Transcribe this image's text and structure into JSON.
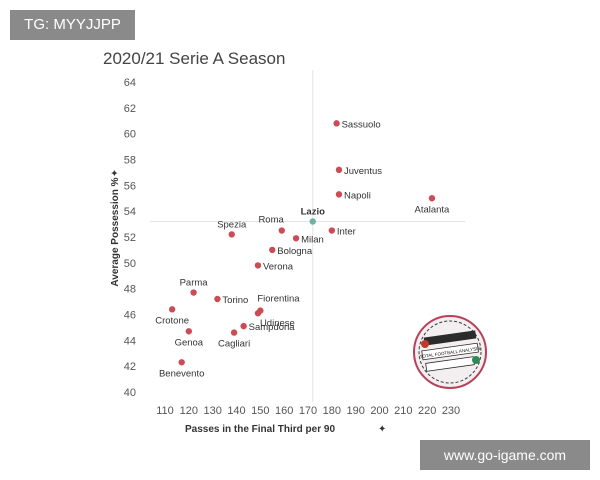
{
  "badge": {
    "text": "TG: MYYJJPP"
  },
  "watermark": {
    "text": "www.go-igame.com"
  },
  "logo": {
    "text": "TOTAL FOOTBALL ANALYSIS"
  },
  "chart_data": {
    "type": "scatter",
    "title": "2020/21 Serie A Season",
    "xlabel": "Passes in the Final Third per 90",
    "ylabel": "Average Possession %",
    "xlim": [
      105,
      235
    ],
    "ylim": [
      39,
      65
    ],
    "xticks": [
      110,
      120,
      130,
      140,
      150,
      160,
      170,
      180,
      190,
      200,
      210,
      220,
      230
    ],
    "yticks": [
      40,
      42,
      44,
      46,
      48,
      50,
      52,
      54,
      56,
      58,
      60,
      62,
      64
    ],
    "reference_lines": {
      "x": 172,
      "y": 53.2
    },
    "grid": false,
    "colors": {
      "default": "#cd4b55",
      "highlight": "#6db3a0",
      "reference": "#e3e3e3"
    },
    "points": [
      {
        "team": "Sassuolo",
        "x": 182,
        "y": 60.8,
        "highlight": false,
        "label_pos": "right"
      },
      {
        "team": "Juventus",
        "x": 183,
        "y": 57.2,
        "highlight": false,
        "label_pos": "right"
      },
      {
        "team": "Napoli",
        "x": 183,
        "y": 55.3,
        "highlight": false,
        "label_pos": "right"
      },
      {
        "team": "Atalanta",
        "x": 222,
        "y": 55.0,
        "highlight": false,
        "label_pos": "below"
      },
      {
        "team": "Lazio",
        "x": 172,
        "y": 53.2,
        "highlight": true,
        "label_pos": "above"
      },
      {
        "team": "Inter",
        "x": 180,
        "y": 52.5,
        "highlight": false,
        "label_pos": "right"
      },
      {
        "team": "Roma",
        "x": 159,
        "y": 52.5,
        "highlight": false,
        "label_pos": "above-left"
      },
      {
        "team": "Milan",
        "x": 165,
        "y": 51.9,
        "highlight": false,
        "label_pos": "right"
      },
      {
        "team": "Spezia",
        "x": 138,
        "y": 52.2,
        "highlight": false,
        "label_pos": "above"
      },
      {
        "team": "Bologna",
        "x": 155,
        "y": 51.0,
        "highlight": false,
        "label_pos": "right"
      },
      {
        "team": "Verona",
        "x": 149,
        "y": 49.8,
        "highlight": false,
        "label_pos": "right"
      },
      {
        "team": "Parma",
        "x": 122,
        "y": 47.7,
        "highlight": false,
        "label_pos": "above"
      },
      {
        "team": "Torino",
        "x": 132,
        "y": 47.2,
        "highlight": false,
        "label_pos": "right"
      },
      {
        "team": "Fiorentina",
        "x": 150,
        "y": 46.3,
        "highlight": false,
        "label_pos": "above-right"
      },
      {
        "team": "Udinese",
        "x": 149,
        "y": 46.1,
        "highlight": false,
        "label_pos": "below-right"
      },
      {
        "team": "Crotone",
        "x": 113,
        "y": 46.4,
        "highlight": false,
        "label_pos": "below"
      },
      {
        "team": "Sampdoria",
        "x": 143,
        "y": 45.1,
        "highlight": false,
        "label_pos": "right"
      },
      {
        "team": "Cagliari",
        "x": 139,
        "y": 44.6,
        "highlight": false,
        "label_pos": "below"
      },
      {
        "team": "Genoa",
        "x": 120,
        "y": 44.7,
        "highlight": false,
        "label_pos": "below"
      },
      {
        "team": "Benevento",
        "x": 117,
        "y": 42.3,
        "highlight": false,
        "label_pos": "below"
      }
    ]
  }
}
